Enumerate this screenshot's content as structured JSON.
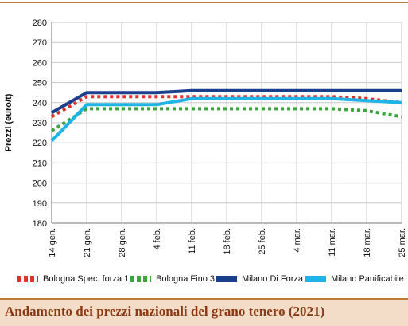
{
  "colors": {
    "bologna_spec": "#e0302a",
    "bologna_fino": "#3aa63a",
    "milano_forza": "#1a3f8c",
    "milano_panif": "#1fb4e6",
    "accent": "#c07a3a",
    "footer_bg": "#f3dcc8",
    "footer_text": "#8a3a12"
  },
  "footer": {
    "title": "Andamento dei prezzi nazionali del grano tenero (2021)"
  },
  "chart_data": {
    "type": "line",
    "ylabel": "Prezzi (euro/t)",
    "xlabel": "",
    "ylim": [
      180,
      280
    ],
    "yticks": [
      180,
      190,
      200,
      210,
      220,
      230,
      240,
      250,
      260,
      270,
      280
    ],
    "grid": true,
    "legend_position": "bottom",
    "categories": [
      "14 gen.",
      "21 gen.",
      "28 gen.",
      "4 feb.",
      "11 feb.",
      "18 feb.",
      "25 feb.",
      "4 mar.",
      "11 mar.",
      "18 mar.",
      "25 mar."
    ],
    "series": [
      {
        "name": "Bologna Spec. forza 1",
        "style": "dotted",
        "color": "#e0302a",
        "values": [
          233,
          243,
          243,
          243,
          243,
          243,
          243,
          243,
          243,
          242,
          240
        ]
      },
      {
        "name": "Bologna Fino 3",
        "style": "dotted",
        "color": "#3aa63a",
        "values": [
          226,
          237,
          237,
          237,
          237,
          237,
          237,
          237,
          237,
          236,
          233
        ]
      },
      {
        "name": "Milano Di Forza",
        "style": "solid",
        "color": "#1a3f8c",
        "values": [
          235,
          245,
          245,
          245,
          246,
          246,
          246,
          246,
          246,
          246,
          246
        ]
      },
      {
        "name": "Milano Panificabile",
        "style": "solid",
        "color": "#1fb4e6",
        "values": [
          221,
          239,
          239,
          239,
          242,
          242,
          242,
          242,
          242,
          241,
          240
        ]
      }
    ]
  }
}
